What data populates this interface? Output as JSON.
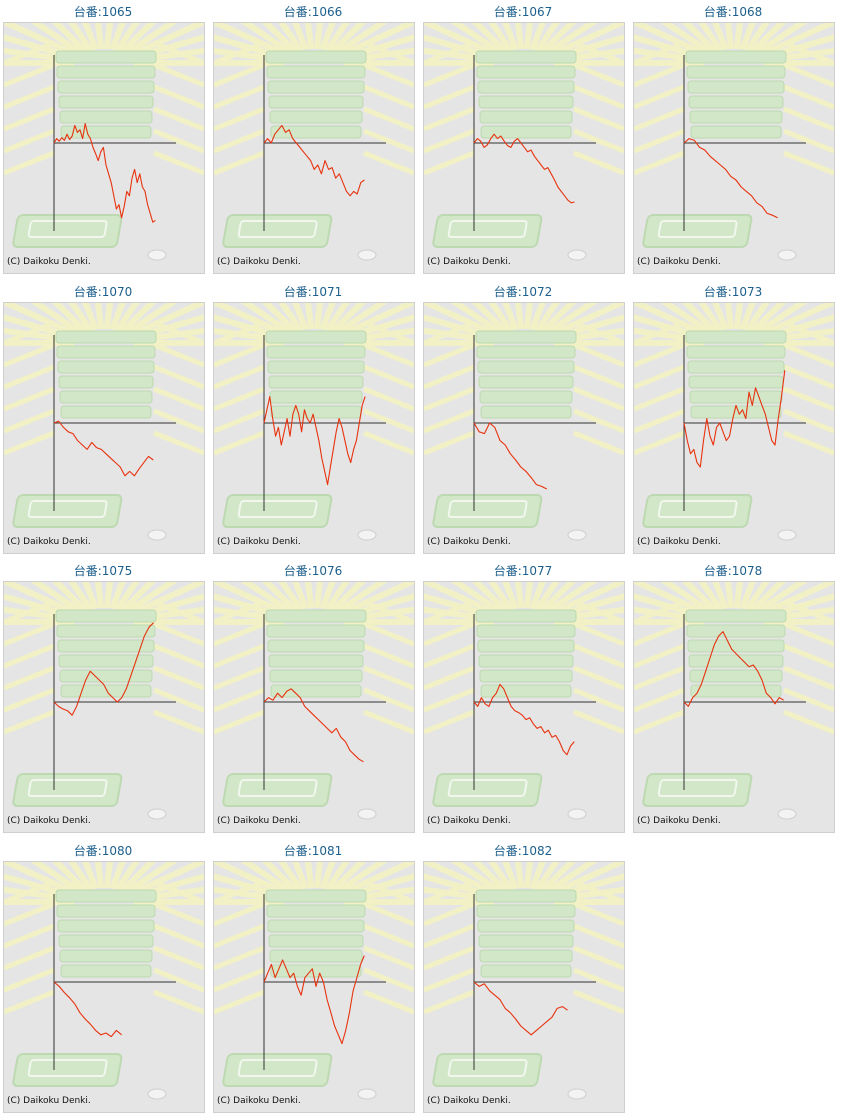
{
  "colors": {
    "title": "#1d5f8c",
    "panel_background": "#e5e5e5",
    "series_line": "#e8320e",
    "axis_line": "#333333",
    "watermark_green": "#cfe8c4",
    "watermark_rays": "#f3f3c2"
  },
  "charts": [
    {
      "label": "台番:1065",
      "copyright": "(C) Daikoku Denki.",
      "chart_data": {
        "type": "line",
        "values": [
          0,
          0.05,
          0.02,
          0.06,
          0.03,
          0.1,
          0.04,
          0.08,
          0.2,
          0.12,
          0.15,
          0.05,
          0.22,
          0.1,
          0.05,
          -0.05,
          -0.12,
          -0.2,
          -0.1,
          -0.05,
          -0.25,
          -0.35,
          -0.45,
          -0.6,
          -0.75,
          -0.7,
          -0.85,
          -0.72,
          -0.55,
          -0.6,
          -0.4,
          -0.3,
          -0.45,
          -0.35,
          -0.5,
          -0.55,
          -0.7,
          -0.8,
          -0.9,
          -0.88
        ]
      }
    },
    {
      "label": "台番:1066",
      "copyright": "(C) Daikoku Denki.",
      "chart_data": {
        "type": "line",
        "values": [
          0,
          0.05,
          0.0,
          0.1,
          0.15,
          0.2,
          0.12,
          0.15,
          0.05,
          0.0,
          -0.05,
          -0.1,
          -0.15,
          -0.2,
          -0.3,
          -0.25,
          -0.35,
          -0.2,
          -0.3,
          -0.28,
          -0.4,
          -0.35,
          -0.45,
          -0.55,
          -0.6,
          -0.55,
          -0.58,
          -0.45,
          -0.42
        ]
      }
    },
    {
      "label": "台番:1067",
      "copyright": "(C) Daikoku Denki.",
      "chart_data": {
        "type": "line",
        "values": [
          0,
          0.05,
          0.02,
          -0.05,
          -0.02,
          0.05,
          0.1,
          0.05,
          0.08,
          0.02,
          -0.03,
          -0.05,
          0.02,
          0.05,
          0.0,
          -0.05,
          -0.1,
          -0.08,
          -0.15,
          -0.2,
          -0.25,
          -0.3,
          -0.28,
          -0.35,
          -0.42,
          -0.5,
          -0.55,
          -0.6,
          -0.65,
          -0.68,
          -0.67
        ]
      }
    },
    {
      "label": "台番:1068",
      "copyright": "(C) Daikoku Denki.",
      "chart_data": {
        "type": "line",
        "values": [
          0,
          0.05,
          0.03,
          -0.05,
          -0.08,
          -0.15,
          -0.2,
          -0.25,
          -0.3,
          -0.38,
          -0.42,
          -0.5,
          -0.55,
          -0.6,
          -0.68,
          -0.72,
          -0.8,
          -0.82,
          -0.85
        ]
      }
    },
    {
      "label": "台番:1070",
      "copyright": "(C) Daikoku Denki.",
      "chart_data": {
        "type": "line",
        "values": [
          0,
          0.02,
          -0.05,
          -0.1,
          -0.12,
          -0.2,
          -0.25,
          -0.3,
          -0.22,
          -0.28,
          -0.3,
          -0.35,
          -0.4,
          -0.45,
          -0.5,
          -0.6,
          -0.55,
          -0.6,
          -0.52,
          -0.45,
          -0.38,
          -0.42
        ]
      }
    },
    {
      "label": "台番:1071",
      "copyright": "(C) Daikoku Denki.",
      "chart_data": {
        "type": "line",
        "values": [
          0,
          0.15,
          0.3,
          0.05,
          -0.15,
          -0.05,
          -0.25,
          -0.1,
          0.05,
          -0.15,
          0.1,
          0.2,
          0.1,
          -0.1,
          0.15,
          0.05,
          0.0,
          0.1,
          -0.05,
          -0.2,
          -0.4,
          -0.55,
          -0.7,
          -0.5,
          -0.3,
          -0.1,
          0.05,
          -0.05,
          -0.2,
          -0.35,
          -0.45,
          -0.3,
          -0.2,
          0.0,
          0.2,
          0.3
        ]
      }
    },
    {
      "label": "台番:1072",
      "copyright": "(C) Daikoku Denki.",
      "chart_data": {
        "type": "line",
        "values": [
          0,
          -0.1,
          -0.12,
          0.0,
          -0.05,
          -0.2,
          -0.25,
          -0.35,
          -0.42,
          -0.5,
          -0.55,
          -0.62,
          -0.7,
          -0.72,
          -0.75
        ]
      }
    },
    {
      "label": "台番:1073",
      "copyright": "(C) Daikoku Denki.",
      "chart_data": {
        "type": "line",
        "values": [
          0,
          -0.2,
          -0.35,
          -0.3,
          -0.45,
          -0.5,
          -0.2,
          0.05,
          -0.15,
          -0.25,
          -0.05,
          0.0,
          -0.1,
          -0.2,
          -0.15,
          0.05,
          0.2,
          0.1,
          0.15,
          0.05,
          0.35,
          0.2,
          0.4,
          0.3,
          0.2,
          0.1,
          -0.05,
          -0.2,
          -0.25,
          0.05,
          0.3,
          0.6
        ]
      }
    },
    {
      "label": "台番:1075",
      "copyright": "(C) Daikoku Denki.",
      "chart_data": {
        "type": "line",
        "values": [
          0,
          -0.05,
          -0.08,
          -0.1,
          -0.15,
          -0.05,
          0.1,
          0.25,
          0.35,
          0.3,
          0.25,
          0.2,
          0.1,
          0.05,
          0.0,
          0.05,
          0.15,
          0.3,
          0.45,
          0.6,
          0.75,
          0.85,
          0.9
        ]
      }
    },
    {
      "label": "台番:1076",
      "copyright": "(C) Daikoku Denki.",
      "chart_data": {
        "type": "line",
        "values": [
          0,
          0.05,
          0.02,
          0.1,
          0.05,
          0.12,
          0.15,
          0.1,
          0.05,
          -0.05,
          -0.1,
          -0.15,
          -0.2,
          -0.25,
          -0.3,
          -0.35,
          -0.3,
          -0.4,
          -0.45,
          -0.55,
          -0.6,
          -0.65,
          -0.68
        ]
      }
    },
    {
      "label": "台番:1077",
      "copyright": "(C) Daikoku Denki.",
      "chart_data": {
        "type": "line",
        "values": [
          0,
          -0.05,
          0.05,
          -0.02,
          -0.05,
          0.05,
          0.1,
          0.2,
          0.15,
          0.05,
          -0.05,
          -0.1,
          -0.12,
          -0.15,
          -0.2,
          -0.18,
          -0.25,
          -0.3,
          -0.28,
          -0.35,
          -0.32,
          -0.4,
          -0.38,
          -0.45,
          -0.55,
          -0.6,
          -0.5,
          -0.45
        ]
      }
    },
    {
      "label": "台番:1078",
      "copyright": "(C) Daikoku Denki.",
      "chart_data": {
        "type": "line",
        "values": [
          0,
          -0.05,
          0.05,
          0.1,
          0.2,
          0.35,
          0.5,
          0.65,
          0.75,
          0.8,
          0.7,
          0.6,
          0.55,
          0.5,
          0.45,
          0.4,
          0.42,
          0.35,
          0.25,
          0.1,
          0.05,
          -0.02,
          0.05,
          0.02
        ]
      }
    },
    {
      "label": "台番:1080",
      "copyright": "(C) Daikoku Denki.",
      "chart_data": {
        "type": "line",
        "values": [
          0,
          -0.05,
          -0.12,
          -0.18,
          -0.25,
          -0.35,
          -0.42,
          -0.48,
          -0.55,
          -0.6,
          -0.58,
          -0.62,
          -0.55,
          -0.6
        ]
      }
    },
    {
      "label": "台番:1081",
      "copyright": "(C) Daikoku Denki.",
      "chart_data": {
        "type": "line",
        "values": [
          0,
          0.1,
          0.2,
          0.05,
          0.15,
          0.25,
          0.15,
          0.05,
          0.1,
          -0.05,
          -0.15,
          0.05,
          0.1,
          0.15,
          -0.05,
          0.1,
          0.0,
          -0.2,
          -0.35,
          -0.5,
          -0.6,
          -0.7,
          -0.55,
          -0.35,
          -0.1,
          0.05,
          0.2,
          0.3
        ]
      }
    },
    {
      "label": "台番:1082",
      "copyright": "(C) Daikoku Denki.",
      "chart_data": {
        "type": "line",
        "values": [
          0,
          -0.05,
          -0.02,
          -0.1,
          -0.15,
          -0.2,
          -0.3,
          -0.35,
          -0.42,
          -0.5,
          -0.55,
          -0.6,
          -0.55,
          -0.5,
          -0.45,
          -0.4,
          -0.3,
          -0.28,
          -0.32
        ]
      }
    }
  ]
}
